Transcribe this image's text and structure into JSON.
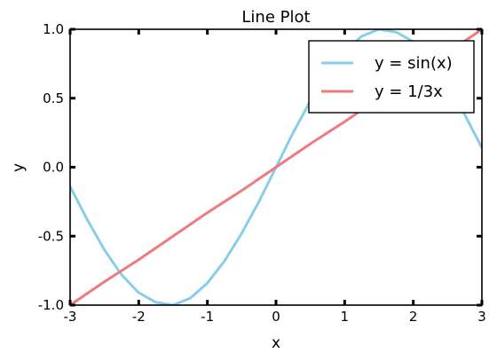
{
  "chart_data": {
    "type": "line",
    "title": "Line Plot",
    "xlabel": "x",
    "ylabel": "y",
    "xlim": [
      -3,
      3
    ],
    "ylim": [
      -1.0,
      1.0
    ],
    "xticks": [
      -3,
      -2,
      -1,
      0,
      1,
      2,
      3
    ],
    "xtick_labels": [
      "-3",
      "-2",
      "-1",
      "0",
      "1",
      "2",
      "3"
    ],
    "yticks": [
      -1.0,
      -0.5,
      0.0,
      0.5,
      1.0
    ],
    "ytick_labels": [
      "-1.0",
      "-0.5",
      "0.0",
      "0.5",
      "1.0"
    ],
    "grid": false,
    "legend_position": "top-right",
    "series": [
      {
        "name": "y = sin(x)",
        "color": "#87ceeb",
        "x": [
          -3.0,
          -2.75,
          -2.5,
          -2.25,
          -2.0,
          -1.75,
          -1.5,
          -1.25,
          -1.0,
          -0.75,
          -0.5,
          -0.25,
          0.0,
          0.25,
          0.5,
          0.75,
          1.0,
          1.25,
          1.5,
          1.75,
          2.0,
          2.25,
          2.5,
          2.75,
          3.0
        ],
        "y": [
          -0.14,
          -0.38,
          -0.6,
          -0.78,
          -0.91,
          -0.98,
          -1.0,
          -0.95,
          -0.84,
          -0.68,
          -0.48,
          -0.25,
          0.0,
          0.25,
          0.48,
          0.68,
          0.84,
          0.95,
          1.0,
          0.98,
          0.91,
          0.78,
          0.6,
          0.38,
          0.14
        ]
      },
      {
        "name": "y = 1/3x",
        "color": "#ee7b7b",
        "x": [
          -3.0,
          -2.5,
          -2.0,
          -1.5,
          -1.0,
          -0.5,
          0.0,
          0.5,
          1.0,
          1.5,
          2.0,
          2.5,
          3.0
        ],
        "y": [
          -1.0,
          -0.83,
          -0.67,
          -0.5,
          -0.33,
          -0.17,
          0.0,
          0.17,
          0.33,
          0.5,
          0.67,
          0.83,
          1.0
        ]
      }
    ]
  }
}
